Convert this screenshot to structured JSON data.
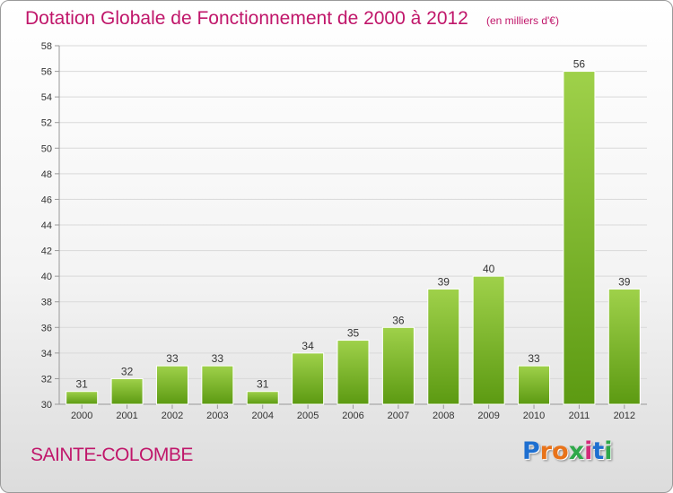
{
  "header": {
    "title": "Dotation Globale de Fonctionnement de 2000 à 2012",
    "unit": "(en milliers d'€)"
  },
  "footer": {
    "commune": "SAINTE-COLOMBE",
    "logo_text": "Proxiti",
    "logo_icon": "proxiti-logo-icon"
  },
  "colors": {
    "title": "#c0166a",
    "bar_light": "#9fd14a",
    "bar_dark": "#5c9a12",
    "grid": "#d9d9d9",
    "axis": "#999999",
    "logo": [
      "#1e6fd0",
      "#e8731a",
      "#e8731a",
      "#2fa84a",
      "#d42a7a",
      "#1e6fd0",
      "#2fa84a"
    ]
  },
  "chart_data": {
    "type": "bar",
    "categories": [
      "2000",
      "2001",
      "2002",
      "2003",
      "2004",
      "2005",
      "2006",
      "2007",
      "2008",
      "2009",
      "2010",
      "2011",
      "2012"
    ],
    "values": [
      31,
      32,
      33,
      33,
      31,
      34,
      35,
      36,
      39,
      40,
      33,
      56,
      39
    ],
    "title": "Dotation Globale de Fonctionnement de 2000 à 2012",
    "ylabel": "",
    "xlabel": "",
    "ylim": [
      30,
      58
    ],
    "yticks": [
      30,
      32,
      34,
      36,
      38,
      40,
      42,
      44,
      46,
      48,
      50,
      52,
      54,
      56,
      58
    ],
    "grid": true,
    "data_labels": true
  }
}
